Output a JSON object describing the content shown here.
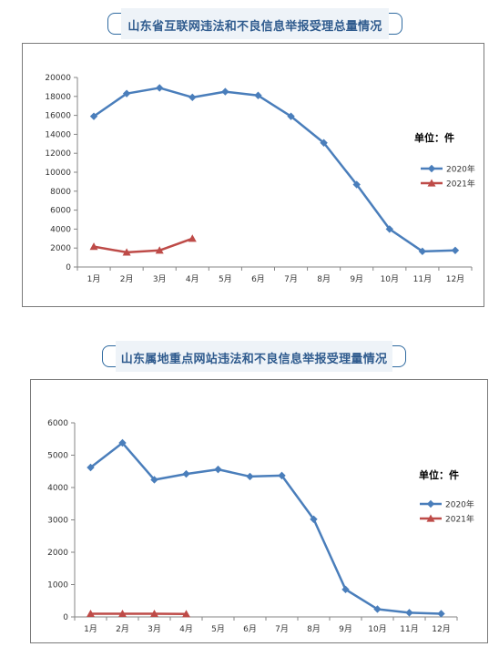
{
  "charts": [
    {
      "banner_title": "山东省互联网违法和不良信息举报受理总量情况",
      "unit_label": "单位：件",
      "chart_data": {
        "type": "line",
        "categories": [
          "1月",
          "2月",
          "3月",
          "4月",
          "5月",
          "6月",
          "7月",
          "8月",
          "9月",
          "10月",
          "11月",
          "12月"
        ],
        "ylim": [
          0,
          20000
        ],
        "yticks": [
          0,
          2000,
          4000,
          6000,
          8000,
          10000,
          12000,
          14000,
          16000,
          18000,
          20000
        ],
        "legend_position": "right",
        "grid": false,
        "series": [
          {
            "name": "2020年",
            "color": "#4a7ebb",
            "marker": "diamond",
            "values": [
              15900,
              18300,
              18900,
              17900,
              18500,
              18100,
              15900,
              13100,
              8700,
              4000,
              1650,
              1750
            ]
          },
          {
            "name": "2021年",
            "color": "#be4b48",
            "marker": "triangle",
            "values": [
              2150,
              1550,
              1750,
              3000,
              null,
              null,
              null,
              null,
              null,
              null,
              null,
              null
            ]
          }
        ]
      }
    },
    {
      "banner_title": "山东属地重点网站违法和不良信息举报受理量情况",
      "unit_label": "单位：件",
      "chart_data": {
        "type": "line",
        "categories": [
          "1月",
          "2月",
          "3月",
          "4月",
          "5月",
          "6月",
          "7月",
          "8月",
          "9月",
          "10月",
          "11月",
          "12月"
        ],
        "ylim": [
          0,
          6000
        ],
        "yticks": [
          0,
          1000,
          2000,
          3000,
          4000,
          5000,
          6000
        ],
        "legend_position": "right",
        "grid": false,
        "series": [
          {
            "name": "2020年",
            "color": "#4a7ebb",
            "marker": "diamond",
            "values": [
              4620,
              5380,
              4240,
              4420,
              4560,
              4340,
              4370,
              3020,
              850,
              240,
              130,
              100
            ]
          },
          {
            "name": "2021年",
            "color": "#be4b48",
            "marker": "triangle",
            "values": [
              100,
              100,
              100,
              90,
              null,
              null,
              null,
              null,
              null,
              null,
              null,
              null
            ]
          }
        ]
      }
    }
  ]
}
